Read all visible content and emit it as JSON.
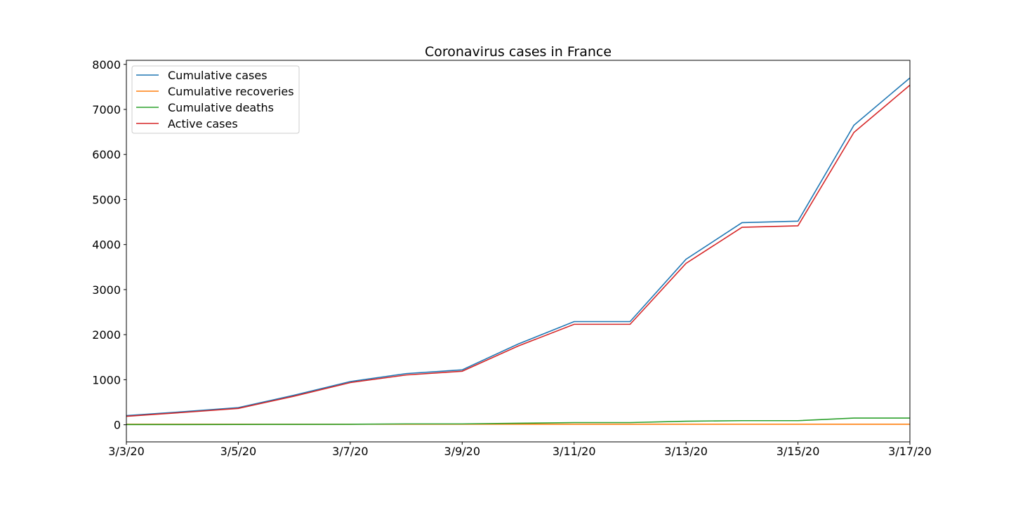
{
  "chart_data": {
    "type": "line",
    "title": "Coronavirus cases in France",
    "xlabel": "",
    "ylabel": "",
    "x": [
      "3/3/20",
      "3/4/20",
      "3/5/20",
      "3/6/20",
      "3/7/20",
      "3/8/20",
      "3/9/20",
      "3/10/20",
      "3/11/20",
      "3/12/20",
      "3/13/20",
      "3/14/20",
      "3/15/20",
      "3/16/20",
      "3/17/20"
    ],
    "x_tick_labels": [
      "3/3/20",
      "3/5/20",
      "3/7/20",
      "3/9/20",
      "3/11/20",
      "3/13/20",
      "3/15/20",
      "3/17/20"
    ],
    "y_ticks": [
      0,
      1000,
      2000,
      3000,
      4000,
      5000,
      6000,
      7000,
      8000
    ],
    "ylim": [
      -380,
      8090
    ],
    "grid": false,
    "legend_position": "top-left",
    "series": [
      {
        "name": "Cumulative cases",
        "color": "#1f77b4",
        "values": [
          204,
          288,
          380,
          656,
          959,
          1136,
          1219,
          1792,
          2290,
          2290,
          3674,
          4487,
          4520,
          6650,
          7699
        ]
      },
      {
        "name": "Cumulative recoveries",
        "color": "#ff7f0e",
        "values": [
          12,
          12,
          12,
          12,
          12,
          12,
          12,
          12,
          12,
          12,
          12,
          12,
          12,
          12,
          12
        ]
      },
      {
        "name": "Cumulative deaths",
        "color": "#2ca02c",
        "values": [
          4,
          4,
          6,
          9,
          11,
          19,
          19,
          33,
          48,
          48,
          79,
          91,
          91,
          148,
          148
        ]
      },
      {
        "name": "Active cases",
        "color": "#d62728",
        "values": [
          188,
          272,
          362,
          635,
          936,
          1105,
          1188,
          1747,
          2230,
          2230,
          3583,
          4384,
          4417,
          6490,
          7539
        ]
      }
    ]
  }
}
